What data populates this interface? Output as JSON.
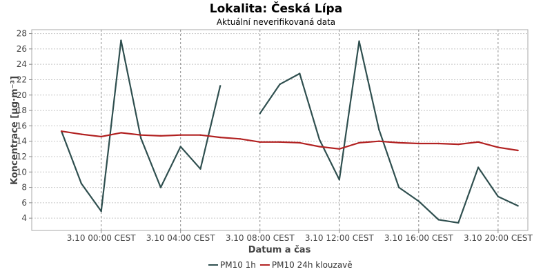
{
  "chart_data": {
    "type": "line",
    "title": "Lokalita: Česká Lípa",
    "subtitle": "Aktuální neverifikovaná data",
    "xlabel": "Datum a čas",
    "ylabel": "Koncentrace [µg·m⁻³]",
    "ylim": [
      2.4,
      28.5
    ],
    "xlim": [
      -3.5,
      21.5
    ],
    "grid": true,
    "legend_position": "bottom-center",
    "x_ticks": [
      {
        "hour": 0,
        "label": "3.10 00:00 CEST"
      },
      {
        "hour": 4,
        "label": "3.10 04:00 CEST"
      },
      {
        "hour": 8,
        "label": "3.10 08:00 CEST"
      },
      {
        "hour": 12,
        "label": "3.10 12:00 CEST"
      },
      {
        "hour": 16,
        "label": "3.10 16:00 CEST"
      },
      {
        "hour": 20,
        "label": "3.10 20:00 CEST"
      }
    ],
    "y_ticks": [
      4,
      6,
      8,
      10,
      12,
      14,
      16,
      18,
      20,
      22,
      24,
      26,
      28
    ],
    "x_hours": [
      -2,
      -1,
      0,
      1,
      2,
      3,
      4,
      5,
      6,
      7,
      8,
      9,
      10,
      11,
      12,
      13,
      14,
      15,
      16,
      17,
      18,
      19,
      20,
      21
    ],
    "series": [
      {
        "name": "PM10 1h",
        "color": "#2f4f4f",
        "values": [
          15.3,
          8.5,
          4.9,
          27.1,
          14.4,
          8.0,
          13.3,
          10.4,
          21.2,
          null,
          17.6,
          21.4,
          22.8,
          14.2,
          9.0,
          27.0,
          15.5,
          8.0,
          6.2,
          3.8,
          3.4,
          10.6,
          6.8,
          5.6
        ]
      },
      {
        "name": "PM10 24h klouzavě",
        "color": "#b22222",
        "values": [
          15.3,
          14.9,
          14.6,
          15.1,
          14.8,
          14.7,
          14.8,
          14.8,
          14.5,
          14.3,
          13.9,
          13.9,
          13.8,
          13.3,
          13.0,
          13.8,
          14.0,
          13.8,
          13.7,
          13.7,
          13.6,
          13.9,
          13.2,
          12.8
        ]
      }
    ]
  }
}
